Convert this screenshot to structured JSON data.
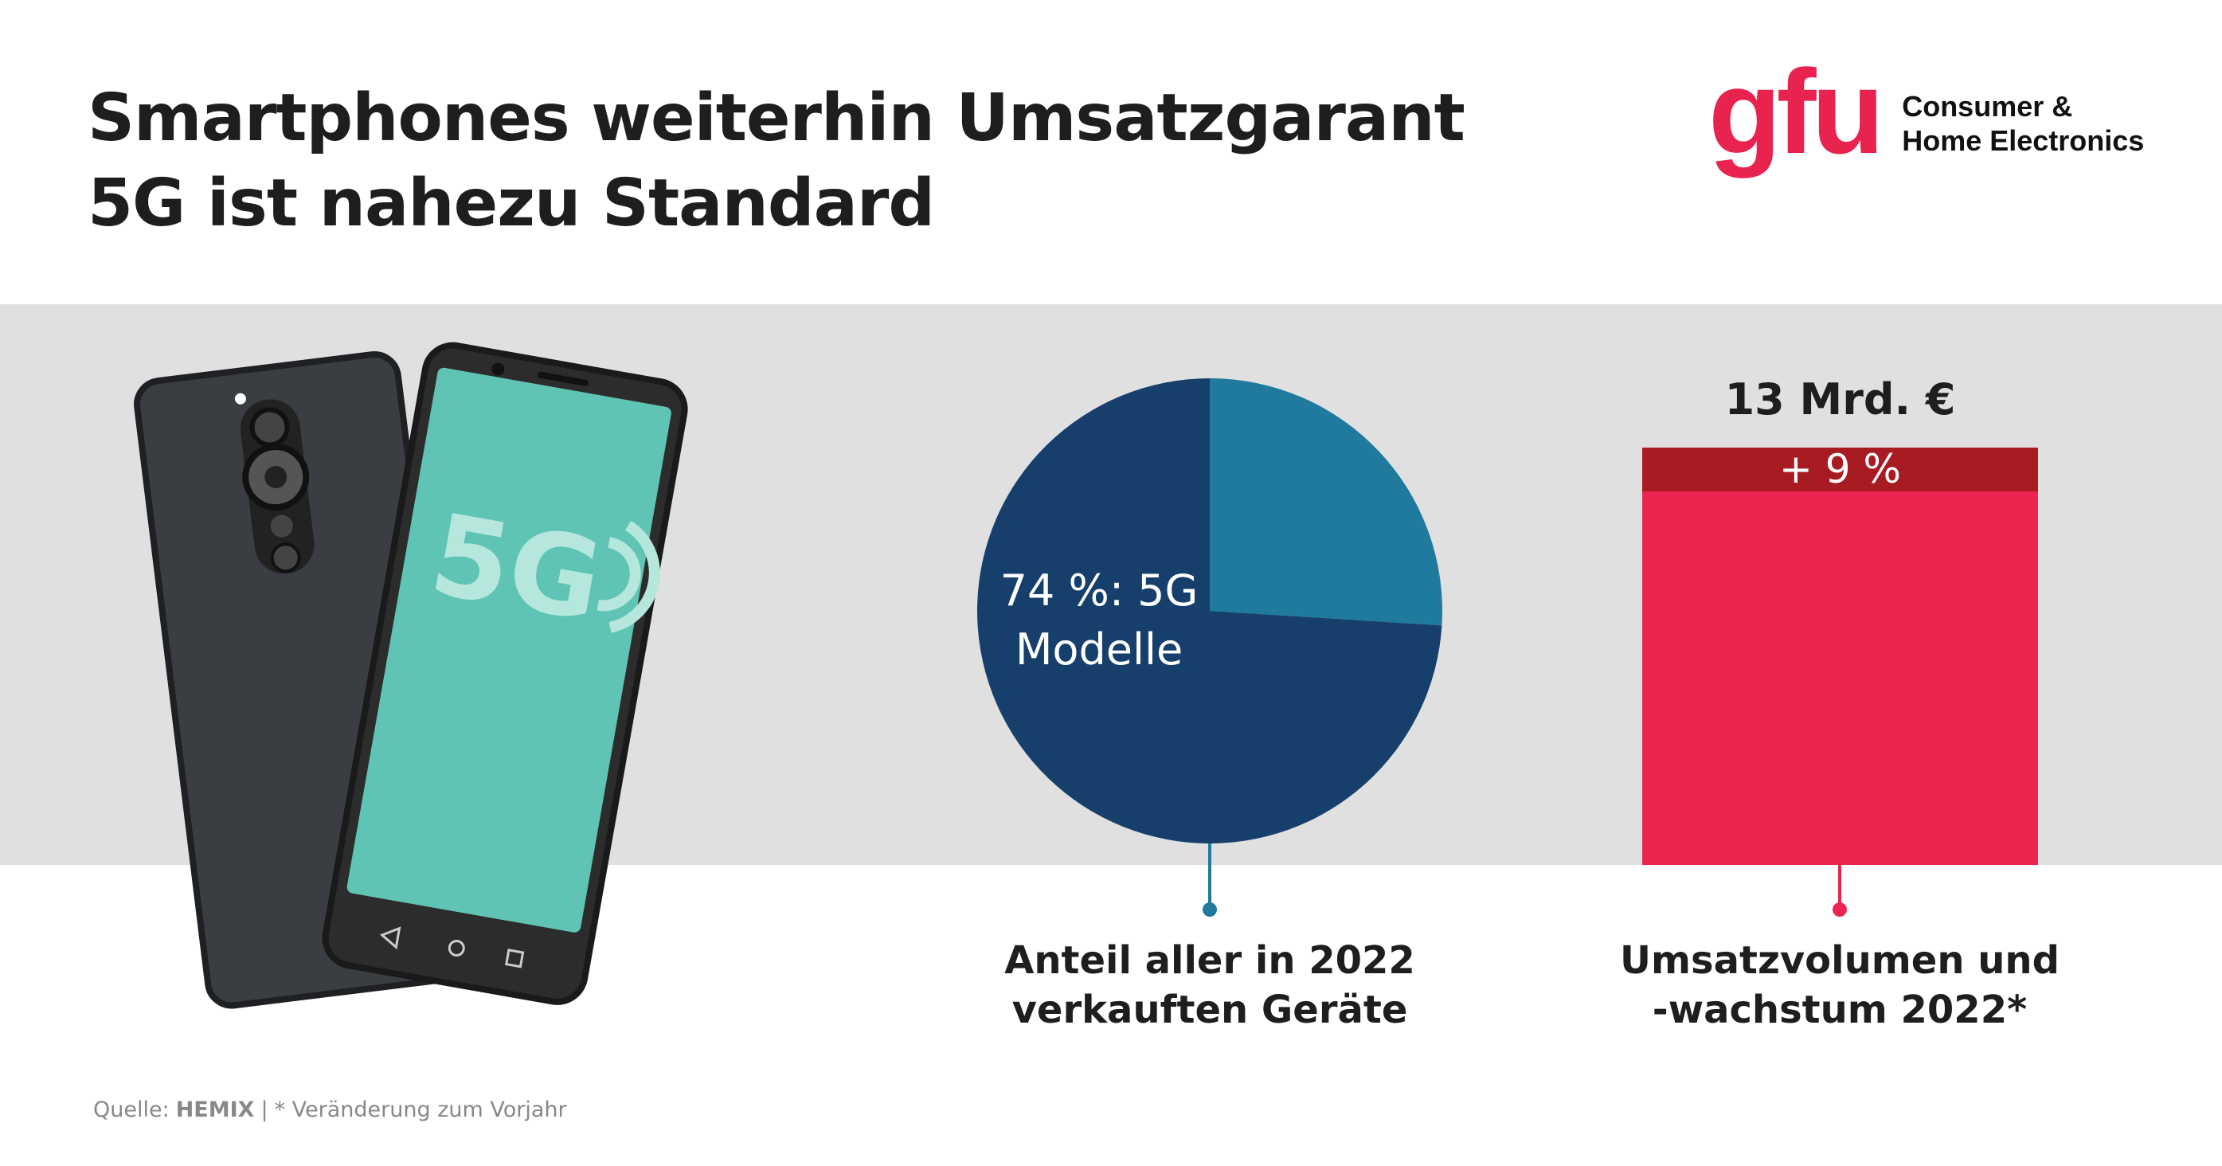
{
  "header": {
    "title_line1": "Smartphones weiterhin Umsatzgarant",
    "title_line2": "5G ist nahezu Standard"
  },
  "logo": {
    "mark": "gfu",
    "line1": "Consumer &",
    "line2": "Home Electronics"
  },
  "phone": {
    "screen_text": "5G"
  },
  "chart_data": [
    {
      "type": "pie",
      "slices": [
        {
          "label": "5G Modelle",
          "value": 74,
          "color": "#163f6c"
        },
        {
          "label": "other",
          "value": 26,
          "color": "#1f7a9e"
        }
      ],
      "data_label_line1": "74 %: 5G",
      "data_label_line2": "Modelle",
      "caption_line1": "Anteil aller in 2022",
      "caption_line2": "verkauften Geräte"
    },
    {
      "type": "bar",
      "value_label": "13 Mrd. €",
      "value": 13,
      "growth_label": "+ 9 %",
      "growth": 9,
      "colors": {
        "bar": "#ec2550",
        "growth": "#a81b22"
      },
      "caption_line1": "Umsatzvolumen und",
      "caption_line2": "-wachstum 2022*"
    }
  ],
  "footer": {
    "source_label": "Quelle:",
    "source_name": "HEMIX",
    "separator": "|",
    "note": "* Veränderung zum Vorjahr"
  }
}
